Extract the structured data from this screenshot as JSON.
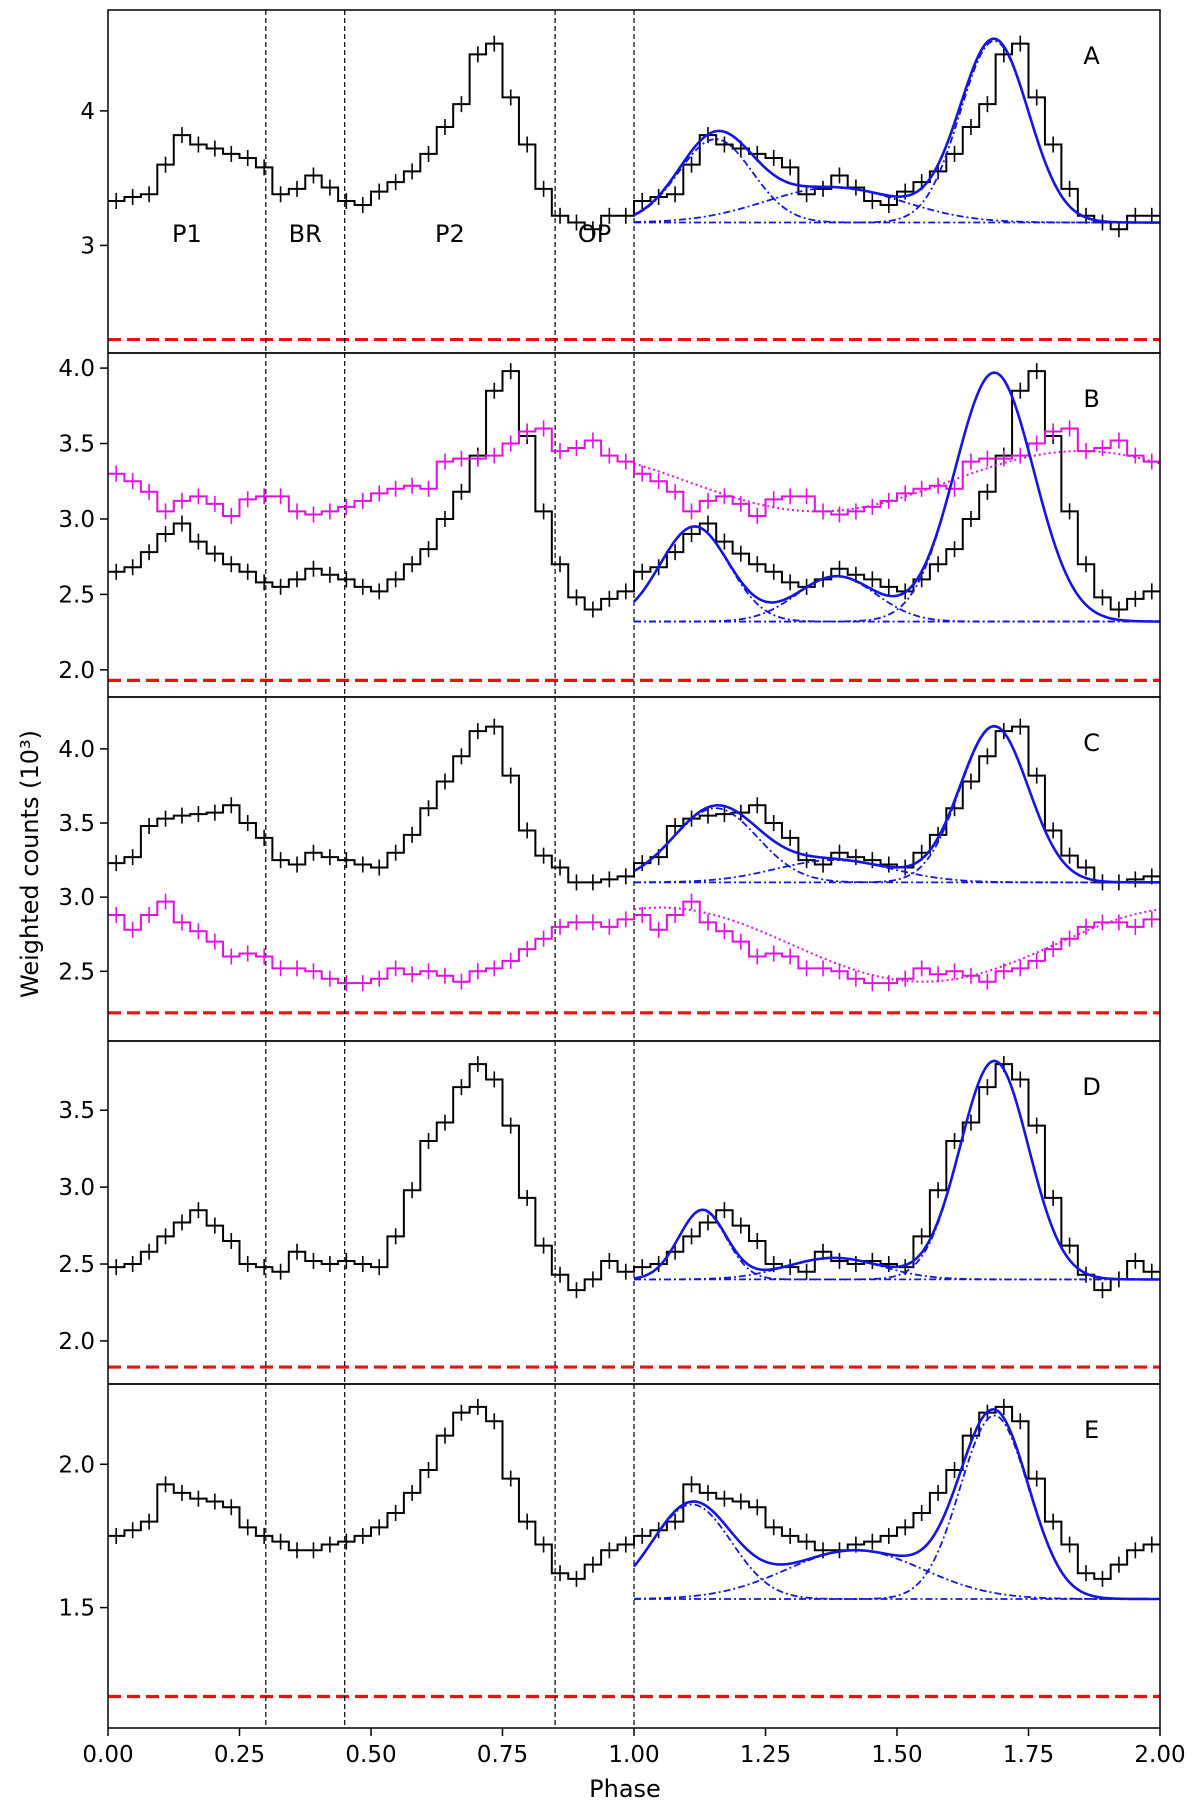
{
  "figure": {
    "xlabel": "Phase",
    "ylabel": "Weighted counts (10³)",
    "x_ticks": [
      "0.00",
      "0.25",
      "0.50",
      "0.75",
      "1.00",
      "1.25",
      "1.50",
      "1.75",
      "2.00"
    ],
    "x_tick_values": [
      0,
      0.25,
      0.5,
      0.75,
      1.0,
      1.25,
      1.5,
      1.75,
      2.0
    ],
    "xlim": [
      0,
      2
    ],
    "phase_boundaries": [
      0.3,
      0.45,
      0.85,
      1.0
    ],
    "region_labels": [
      {
        "text": "P1",
        "x": 0.15
      },
      {
        "text": "BR",
        "x": 0.375
      },
      {
        "text": "P2",
        "x": 0.65
      },
      {
        "text": "OP",
        "x": 0.925
      }
    ],
    "colors": {
      "data": "#000000",
      "offpulse_line": "#e8120c",
      "fit": "#1515e0",
      "second_series": "#e010e0"
    }
  },
  "chart_data": [
    {
      "type": "line",
      "panel_label": "A",
      "ylim": [
        2.2,
        4.75
      ],
      "yticks": [
        3,
        4
      ],
      "ytick_labels": [
        "3",
        "4"
      ],
      "offpulse_level": 2.3,
      "fit_baseline": 3.17,
      "fit_components": [
        {
          "mu": 1.155,
          "sigma": 0.07,
          "amp": 0.62
        },
        {
          "mu": 1.38,
          "sigma": 0.13,
          "amp": 0.26
        },
        {
          "mu": 1.685,
          "sigma": 0.065,
          "amp": 1.35
        }
      ],
      "series": [
        {
          "color": "#000000",
          "values": [
            3.33,
            3.36,
            3.38,
            3.6,
            3.82,
            3.75,
            3.72,
            3.68,
            3.65,
            3.58,
            3.38,
            3.42,
            3.52,
            3.43,
            3.33,
            3.3,
            3.4,
            3.47,
            3.55,
            3.68,
            3.88,
            4.05,
            4.42,
            4.5,
            4.1,
            3.75,
            3.42,
            3.22,
            3.17,
            3.12,
            3.22,
            3.22,
            3.25
          ]
        }
      ]
    },
    {
      "type": "line",
      "panel_label": "B",
      "ylim": [
        1.82,
        4.1
      ],
      "yticks": [
        2.0,
        2.5,
        3.0,
        3.5,
        4.0
      ],
      "ytick_labels": [
        "2.0",
        "2.5",
        "3.0",
        "3.5",
        "4.0"
      ],
      "offpulse_level": 1.93,
      "fit_baseline": 2.32,
      "fit_components": [
        {
          "mu": 1.115,
          "sigma": 0.065,
          "amp": 0.63
        },
        {
          "mu": 1.385,
          "sigma": 0.075,
          "amp": 0.3
        },
        {
          "mu": 1.685,
          "sigma": 0.075,
          "amp": 1.65
        }
      ],
      "second_fit": {
        "mean": 3.25,
        "amp": 0.2,
        "peak_phase": 0.85
      },
      "series": [
        {
          "color": "#000000",
          "values": [
            2.65,
            2.68,
            2.78,
            2.9,
            2.97,
            2.85,
            2.77,
            2.7,
            2.65,
            2.58,
            2.55,
            2.6,
            2.67,
            2.63,
            2.6,
            2.55,
            2.52,
            2.6,
            2.7,
            2.8,
            3.0,
            3.18,
            3.42,
            3.85,
            3.98,
            3.55,
            3.05,
            2.7,
            2.48,
            2.4,
            2.47,
            2.52,
            2.56
          ]
        },
        {
          "color": "#e010e0",
          "values": [
            3.3,
            3.25,
            3.18,
            3.05,
            3.12,
            3.15,
            3.1,
            3.02,
            3.13,
            3.15,
            3.15,
            3.05,
            3.03,
            3.05,
            3.08,
            3.12,
            3.17,
            3.2,
            3.22,
            3.2,
            3.38,
            3.4,
            3.4,
            3.42,
            3.5,
            3.58,
            3.6,
            3.45,
            3.47,
            3.52,
            3.42,
            3.38,
            3.35
          ]
        }
      ]
    },
    {
      "type": "line",
      "panel_label": "C",
      "ylim": [
        2.03,
        4.35
      ],
      "yticks": [
        2.5,
        3.0,
        3.5,
        4.0
      ],
      "ytick_labels": [
        "2.5",
        "3.0",
        "3.5",
        "4.0"
      ],
      "offpulse_level": 2.22,
      "fit_baseline": 3.1,
      "fit_components": [
        {
          "mu": 1.155,
          "sigma": 0.08,
          "amp": 0.5
        },
        {
          "mu": 1.38,
          "sigma": 0.11,
          "amp": 0.15
        },
        {
          "mu": 1.685,
          "sigma": 0.065,
          "amp": 1.05
        }
      ],
      "second_fit": {
        "mean": 2.68,
        "amp": 0.25,
        "peak_phase": 0.05
      },
      "series": [
        {
          "color": "#000000",
          "values": [
            3.23,
            3.27,
            3.48,
            3.53,
            3.55,
            3.56,
            3.57,
            3.62,
            3.5,
            3.4,
            3.25,
            3.22,
            3.3,
            3.27,
            3.25,
            3.22,
            3.2,
            3.3,
            3.42,
            3.6,
            3.78,
            3.95,
            4.12,
            4.15,
            3.82,
            3.45,
            3.28,
            3.2,
            3.1,
            3.1,
            3.12,
            3.14,
            3.15
          ]
        },
        {
          "color": "#e010e0",
          "values": [
            2.88,
            2.78,
            2.88,
            2.97,
            2.83,
            2.77,
            2.7,
            2.6,
            2.62,
            2.6,
            2.52,
            2.52,
            2.5,
            2.45,
            2.42,
            2.42,
            2.45,
            2.52,
            2.48,
            2.5,
            2.47,
            2.43,
            2.5,
            2.52,
            2.57,
            2.65,
            2.72,
            2.8,
            2.83,
            2.83,
            2.8,
            2.85,
            2.87
          ]
        }
      ]
    },
    {
      "type": "line",
      "panel_label": "D",
      "ylim": [
        1.72,
        3.95
      ],
      "yticks": [
        2.0,
        2.5,
        3.0,
        3.5
      ],
      "ytick_labels": [
        "2.0",
        "2.5",
        "3.0",
        "3.5"
      ],
      "offpulse_level": 1.83,
      "fit_baseline": 2.4,
      "fit_components": [
        {
          "mu": 1.13,
          "sigma": 0.045,
          "amp": 0.45
        },
        {
          "mu": 1.38,
          "sigma": 0.09,
          "amp": 0.14
        },
        {
          "mu": 1.685,
          "sigma": 0.065,
          "amp": 1.42
        }
      ],
      "series": [
        {
          "color": "#000000",
          "values": [
            2.48,
            2.5,
            2.58,
            2.68,
            2.77,
            2.85,
            2.75,
            2.65,
            2.5,
            2.48,
            2.45,
            2.58,
            2.52,
            2.5,
            2.52,
            2.5,
            2.48,
            2.68,
            2.98,
            3.3,
            3.42,
            3.65,
            3.8,
            3.7,
            3.4,
            2.93,
            2.62,
            2.43,
            2.33,
            2.4,
            2.52,
            2.45,
            2.43
          ]
        }
      ]
    },
    {
      "type": "line",
      "panel_label": "E",
      "ylim": [
        1.08,
        2.28
      ],
      "yticks": [
        1.5,
        2.0
      ],
      "ytick_labels": [
        "1.5",
        "2.0"
      ],
      "offpulse_level": 1.19,
      "fit_baseline": 1.53,
      "fit_components": [
        {
          "mu": 1.11,
          "sigma": 0.075,
          "amp": 0.33
        },
        {
          "mu": 1.42,
          "sigma": 0.13,
          "amp": 0.17
        },
        {
          "mu": 1.685,
          "sigma": 0.065,
          "amp": 0.64
        }
      ],
      "series": [
        {
          "color": "#000000",
          "values": [
            1.75,
            1.77,
            1.8,
            1.93,
            1.9,
            1.88,
            1.87,
            1.85,
            1.78,
            1.75,
            1.73,
            1.7,
            1.7,
            1.72,
            1.73,
            1.75,
            1.78,
            1.83,
            1.9,
            1.98,
            2.1,
            2.18,
            2.2,
            2.15,
            1.95,
            1.8,
            1.72,
            1.62,
            1.6,
            1.65,
            1.7,
            1.72,
            1.73
          ]
        }
      ]
    }
  ]
}
